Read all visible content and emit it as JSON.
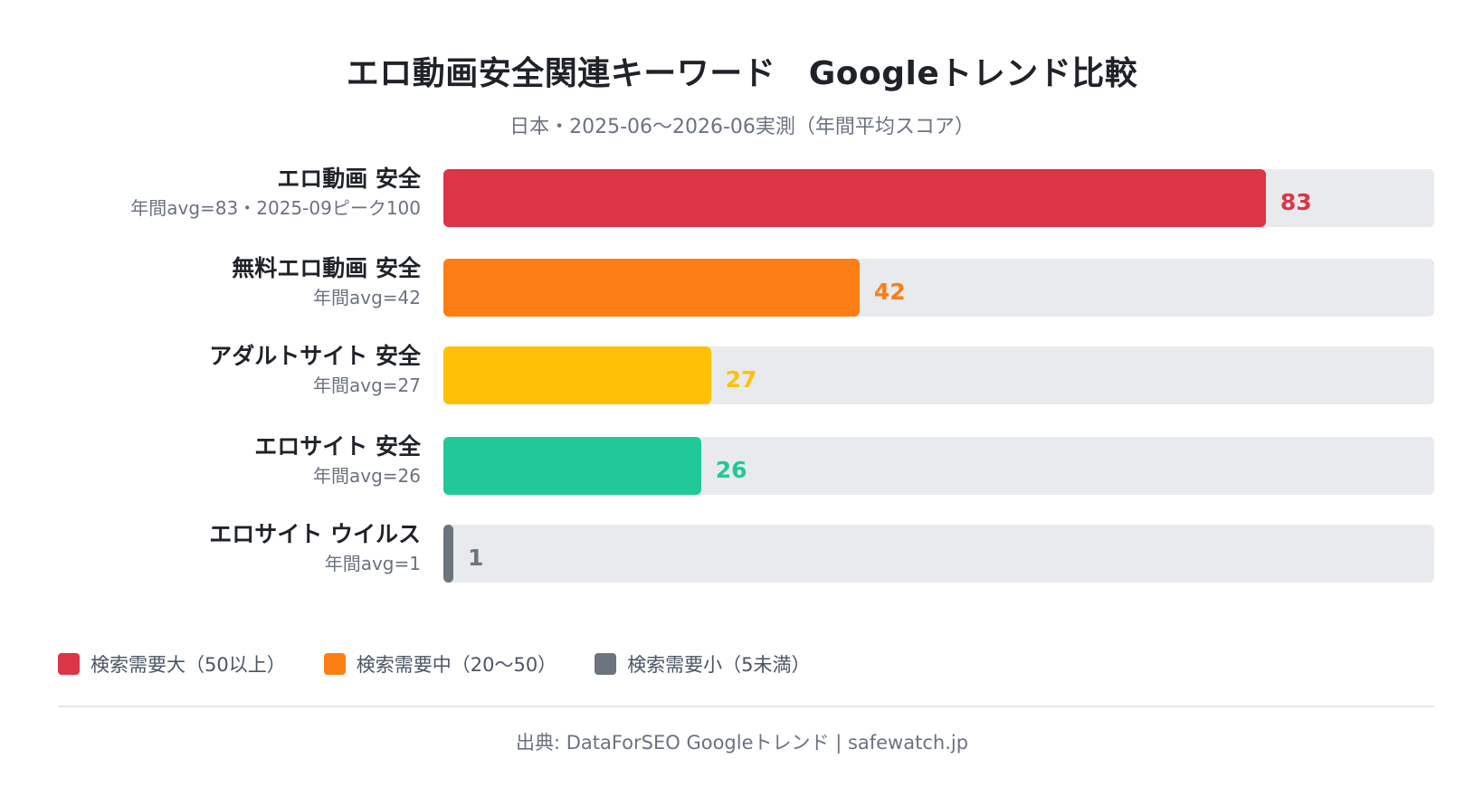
{
  "header": {
    "title": "エロ動画安全関連キーワード　Googleトレンド比較",
    "subtitle": "日本・2025-06〜2026-06実測（年間平均スコア）"
  },
  "chart_data": {
    "type": "bar",
    "orientation": "horizontal",
    "title": "エロ動画安全関連キーワード　Googleトレンド比較",
    "subtitle": "日本・2025-06〜2026-06実測（年間平均スコア）",
    "xlim": [
      0,
      100
    ],
    "grid": false,
    "categories": [
      "エロ動画 安全",
      "無料エロ動画 安全",
      "アダルトサイト 安全",
      "エロサイト 安全",
      "エロサイト ウイルス"
    ],
    "sublabels": [
      "年間avg=83・2025-09ピーク100",
      "年間avg=42",
      "年間avg=27",
      "年間avg=26",
      "年間avg=1"
    ],
    "values": [
      83,
      42,
      27,
      26,
      1
    ],
    "colors": [
      "#dc3545",
      "#fd7e14",
      "#ffc107",
      "#20c997",
      "#6c757d"
    ],
    "legend": [
      {
        "label": "検索需要大（50以上）",
        "color": "#dc3545"
      },
      {
        "label": "検索需要中（20〜50）",
        "color": "#fd7e14"
      },
      {
        "label": "検索需要小（5未満）",
        "color": "#6c757d"
      }
    ],
    "track_color": "#e8eaed"
  },
  "footer": {
    "source": "出典: DataForSEO Googleトレンド | safewatch.jp"
  }
}
